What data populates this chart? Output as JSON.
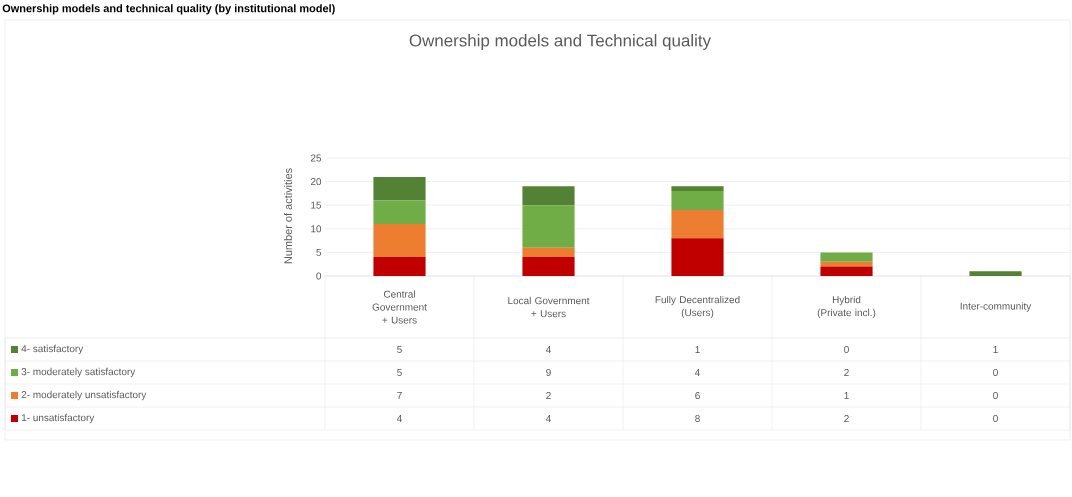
{
  "chart_data": {
    "type": "bar",
    "title": "Ownership models and Technical quality",
    "subtitle": "Ownership models and technical quality (by institutional model)",
    "ylabel": "Number of activities",
    "categories": [
      "Central Government + Users",
      "Local Government + Users",
      "Fully Decentralized (Users)",
      "Hybrid (Private incl.)",
      "Inter-community"
    ],
    "series": [
      {
        "name": "1- unsatisfactory",
        "color": "#c00000",
        "values": [
          4,
          4,
          8,
          2,
          0
        ]
      },
      {
        "name": "2- moderately unsatisfactory",
        "color": "#ed7d31",
        "values": [
          7,
          2,
          6,
          1,
          0
        ]
      },
      {
        "name": "3- moderately satisfactory",
        "color": "#70ad47",
        "values": [
          5,
          9,
          4,
          2,
          0
        ]
      },
      {
        "name": "4- satisfactory",
        "color": "#548235",
        "values": [
          5,
          4,
          1,
          0,
          1
        ]
      }
    ],
    "stacked": true,
    "ylim": [
      0,
      25
    ],
    "yticks": [
      0,
      5,
      10,
      15,
      20,
      25
    ],
    "grid": "y",
    "legend": "bottom left",
    "data_labels": true
  }
}
